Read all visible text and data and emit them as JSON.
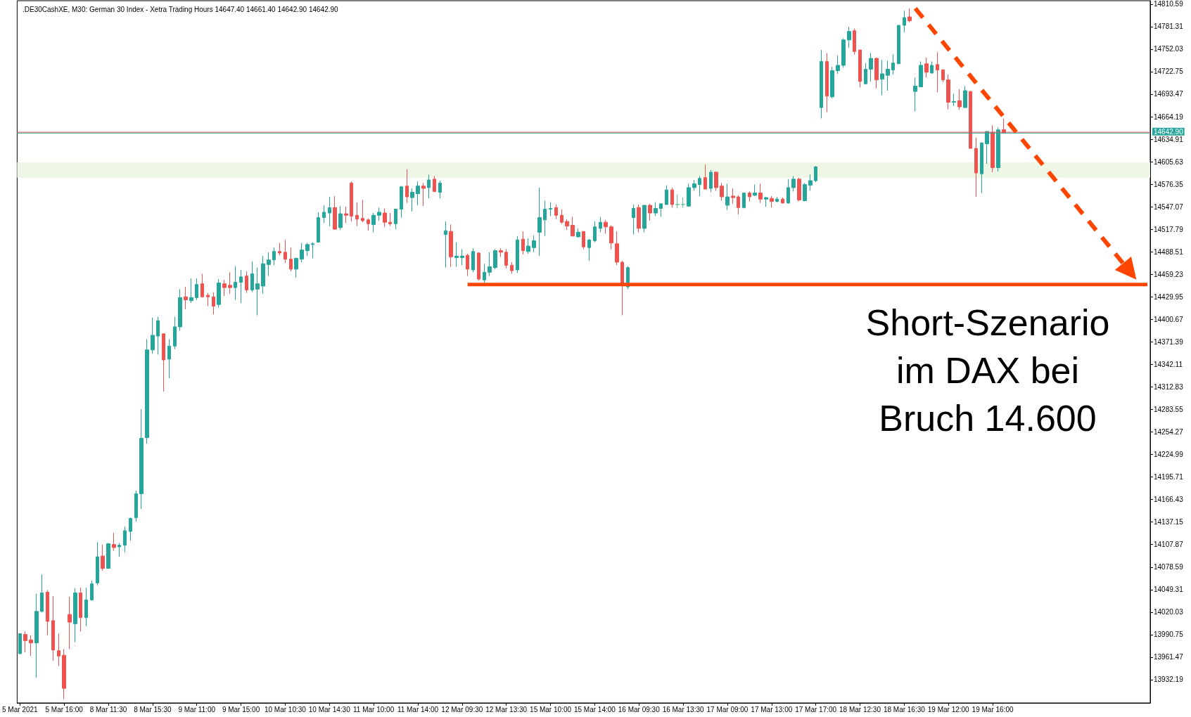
{
  "chart_data": {
    "type": "candlestick",
    "title": ".DE30CashXE, M30: German 30 Index - Xetra Trading Hours 14647.40 14661.40 14642.90 14642.90",
    "categories": [
      "5 Mar 2021",
      null,
      null,
      null,
      null,
      null,
      null,
      null,
      "5 Mar 16:00",
      null,
      null,
      null,
      null,
      null,
      null,
      null,
      "8 Mar 11:30",
      null,
      null,
      null,
      null,
      null,
      null,
      null,
      "8 Mar 15:30",
      null,
      null,
      null,
      null,
      null,
      null,
      null,
      "9 Mar 11:00",
      null,
      null,
      null,
      null,
      null,
      null,
      null,
      "9 Mar 15:00",
      null,
      null,
      null,
      null,
      null,
      null,
      null,
      "10 Mar 10:30",
      null,
      null,
      null,
      null,
      null,
      null,
      null,
      "10 Mar 14:30",
      null,
      null,
      null,
      null,
      null,
      null,
      null,
      "11 Mar 10:00",
      null,
      null,
      null,
      null,
      null,
      null,
      null,
      "11 Mar 14:00",
      null,
      null,
      null,
      null,
      null,
      null,
      null,
      "12 Mar 09:30",
      null,
      null,
      null,
      null,
      null,
      null,
      null,
      "12 Mar 13:30",
      null,
      null,
      null,
      null,
      null,
      null,
      null,
      "15 Mar 10:00",
      null,
      null,
      null,
      null,
      null,
      null,
      null,
      "15 Mar 14:00",
      null,
      null,
      null,
      null,
      null,
      null,
      null,
      "16 Mar 09:30",
      null,
      null,
      null,
      null,
      null,
      null,
      null,
      "16 Mar 13:30",
      null,
      null,
      null,
      null,
      null,
      null,
      null,
      "17 Mar 09:00",
      null,
      null,
      null,
      null,
      null,
      null,
      null,
      "17 Mar 13:00",
      null,
      null,
      null,
      null,
      null,
      null,
      null,
      "17 Mar 17:00",
      null,
      null,
      null,
      null,
      null,
      null,
      null,
      "18 Mar 12:30",
      null,
      null,
      null,
      null,
      null,
      null,
      null,
      "18 Mar 16:30",
      null,
      null,
      null,
      null,
      null,
      null,
      null,
      "19 Mar 12:00",
      null,
      null,
      null,
      null,
      null,
      null,
      null,
      "19 Mar 16:00",
      null,
      null,
      null,
      null,
      null,
      null,
      null,
      null,
      null,
      null,
      null,
      null,
      null,
      null,
      null,
      null,
      null,
      null,
      null,
      null,
      null,
      null,
      null,
      null,
      null,
      null,
      null,
      null
    ],
    "ohlc": [
      [
        13966,
        13992,
        13966,
        13992
      ],
      [
        13991,
        13995,
        13968,
        13983
      ],
      [
        13984,
        13990,
        13963,
        13980
      ],
      [
        13980,
        14044,
        13935,
        14021
      ],
      [
        14021,
        14069,
        14020,
        14045
      ],
      [
        14046,
        14049,
        13990,
        14008
      ],
      [
        14009,
        14041,
        13957,
        13971
      ],
      [
        13970,
        13992,
        13950,
        13963
      ],
      [
        13964,
        13972,
        13907,
        13921
      ],
      [
        14017,
        14040,
        13972,
        14007
      ],
      [
        14005,
        14051,
        13981,
        14045
      ],
      [
        14045,
        14052,
        13995,
        14013
      ],
      [
        14013,
        14052,
        14002,
        14036
      ],
      [
        14036,
        14061,
        14035,
        14057
      ],
      [
        14058,
        14111,
        14055,
        14092
      ],
      [
        14093,
        14108,
        14074,
        14077
      ],
      [
        14077,
        14110,
        14077,
        14109
      ],
      [
        14108,
        14123,
        14100,
        14104
      ],
      [
        14105,
        14110,
        14092,
        14107
      ],
      [
        14107,
        14131,
        14098,
        14126
      ],
      [
        14125,
        14143,
        14113,
        14142
      ],
      [
        14143,
        14178,
        14138,
        14174
      ],
      [
        14174,
        14284,
        14154,
        14246
      ],
      [
        14247,
        14375,
        14239,
        14361
      ],
      [
        14361,
        14403,
        14356,
        14380
      ],
      [
        14379,
        14404,
        14355,
        14399
      ],
      [
        14382,
        14382,
        14307,
        14348
      ],
      [
        14349,
        14375,
        14324,
        14366
      ],
      [
        14366,
        14404,
        14362,
        14391
      ],
      [
        14391,
        14440,
        14386,
        14429
      ],
      [
        14430,
        14443,
        14414,
        14426
      ],
      [
        14425,
        14454,
        14422,
        14429
      ],
      [
        14429,
        14454,
        14426,
        14446
      ],
      [
        14447,
        14460,
        14429,
        14430
      ],
      [
        14432,
        14435,
        14418,
        14430
      ],
      [
        14430,
        14436,
        14407,
        14418
      ],
      [
        14420,
        14453,
        14416,
        14448
      ],
      [
        14447,
        14452,
        14431,
        14442
      ],
      [
        14445,
        14462,
        14434,
        14442
      ],
      [
        14442,
        14470,
        14426,
        14449
      ],
      [
        14449,
        14465,
        14422,
        14456
      ],
      [
        14457,
        14463,
        14435,
        14439
      ],
      [
        14439,
        14476,
        14436,
        14460
      ],
      [
        14440,
        14468,
        14406,
        14447
      ],
      [
        14444,
        14483,
        14434,
        14473
      ],
      [
        14472,
        14488,
        14457,
        14478
      ],
      [
        14478,
        14494,
        14471,
        14489
      ],
      [
        14489,
        14500,
        14484,
        14487
      ],
      [
        14488,
        14504,
        14474,
        14479
      ],
      [
        14479,
        14494,
        14463,
        14466
      ],
      [
        14466,
        14481,
        14455,
        14480
      ],
      [
        14479,
        14500,
        14475,
        14491
      ],
      [
        14490,
        14500,
        14483,
        14498
      ],
      [
        14498,
        14501,
        14480,
        14499
      ],
      [
        14501,
        14540,
        14501,
        14533
      ],
      [
        14533,
        14549,
        14526,
        14540
      ],
      [
        14539,
        14560,
        14522,
        14546
      ],
      [
        14546,
        14561,
        14517,
        14518
      ],
      [
        14520,
        14548,
        14517,
        14538
      ],
      [
        14538,
        14547,
        14526,
        14536
      ],
      [
        14578,
        14580,
        14528,
        14535
      ],
      [
        14536,
        14553,
        14522,
        14531
      ],
      [
        14532,
        14556,
        14527,
        14529
      ],
      [
        14530,
        14532,
        14516,
        14525
      ],
      [
        14524,
        14539,
        14514,
        14536
      ],
      [
        14536,
        14546,
        14529,
        14540
      ],
      [
        14539,
        14545,
        14521,
        14527
      ],
      [
        14527,
        14539,
        14522,
        14525
      ],
      [
        14525,
        14544,
        14518,
        14544
      ],
      [
        14544,
        14574,
        14533,
        14573
      ],
      [
        14574,
        14596,
        14552,
        14560
      ],
      [
        14559,
        14571,
        14541,
        14566
      ],
      [
        14564,
        14580,
        14549,
        14574
      ],
      [
        14574,
        14578,
        14548,
        14571
      ],
      [
        14572,
        14589,
        14558,
        14582
      ],
      [
        14583,
        14587,
        14566,
        14567
      ],
      [
        14566,
        14581,
        14558,
        14578
      ],
      [
        14511,
        14528,
        14468,
        14516
      ],
      [
        14515,
        14524,
        14469,
        14482
      ],
      [
        14481,
        14501,
        14469,
        14483
      ],
      [
        14481,
        14492,
        14471,
        14483
      ],
      [
        14484,
        14486,
        14457,
        14466
      ],
      [
        14465,
        14493,
        14462,
        14489
      ],
      [
        14487,
        14488,
        14451,
        14453
      ],
      [
        14452,
        14473,
        14448,
        14462
      ],
      [
        14462,
        14488,
        14457,
        14469
      ],
      [
        14468,
        14492,
        14466,
        14490
      ],
      [
        14490,
        14493,
        14482,
        14488
      ],
      [
        14488,
        14492,
        14467,
        14471
      ],
      [
        14471,
        14475,
        14460,
        14464
      ],
      [
        14465,
        14509,
        14461,
        14504
      ],
      [
        14505,
        14515,
        14485,
        14490
      ],
      [
        14489,
        14506,
        14486,
        14496
      ],
      [
        14494,
        14510,
        14488,
        14503
      ],
      [
        14514,
        14572,
        14483,
        14533
      ],
      [
        14530,
        14555,
        14509,
        14544
      ],
      [
        14544,
        14553,
        14535,
        14545
      ],
      [
        14546,
        14550,
        14531,
        14536
      ],
      [
        14536,
        14544,
        14525,
        14527
      ],
      [
        14528,
        14531,
        14517,
        14522
      ],
      [
        14523,
        14534,
        14509,
        14509
      ],
      [
        14508,
        14519,
        14507,
        14514
      ],
      [
        14515,
        14515,
        14492,
        14495
      ],
      [
        14494,
        14505,
        14477,
        14504
      ],
      [
        14503,
        14528,
        14501,
        14521
      ],
      [
        14519,
        14534,
        14514,
        14527
      ],
      [
        14527,
        14530,
        14512,
        14521
      ],
      [
        14521,
        14523,
        14492,
        14500
      ],
      [
        14499,
        14515,
        14471,
        14475
      ],
      [
        14475,
        14477,
        14406,
        14447
      ],
      [
        14443,
        14470,
        14440,
        14468
      ],
      [
        14533,
        14550,
        14511,
        14545
      ],
      [
        14546,
        14550,
        14514,
        14519
      ],
      [
        14519,
        14549,
        14514,
        14549
      ],
      [
        14549,
        14551,
        14529,
        14539
      ],
      [
        14539,
        14553,
        14535,
        14545
      ],
      [
        14545,
        14551,
        14534,
        14551
      ],
      [
        14550,
        14575,
        14550,
        14569
      ],
      [
        14569,
        14572,
        14546,
        14550
      ],
      [
        14550,
        14563,
        14545,
        14550
      ],
      [
        14550,
        14559,
        14546,
        14550
      ],
      [
        14548,
        14577,
        14547,
        14572
      ],
      [
        14572,
        14582,
        14568,
        14577
      ],
      [
        14576,
        14587,
        14561,
        14584
      ],
      [
        14585,
        14602,
        14570,
        14570
      ],
      [
        14571,
        14595,
        14566,
        14592
      ],
      [
        14592,
        14593,
        14568,
        14572
      ],
      [
        14574,
        14578,
        14555,
        14560
      ],
      [
        14549,
        14577,
        14543,
        14560
      ],
      [
        14561,
        14571,
        14551,
        14559
      ],
      [
        14560,
        14562,
        14537,
        14546
      ],
      [
        14546,
        14565,
        14545,
        14565
      ],
      [
        14565,
        14567,
        14554,
        14560
      ],
      [
        14562,
        14576,
        14561,
        14565
      ],
      [
        14565,
        14577,
        14552,
        14557
      ],
      [
        14557,
        14560,
        14547,
        14559
      ],
      [
        14558,
        14561,
        14546,
        14554
      ],
      [
        14554,
        14560,
        14553,
        14557
      ],
      [
        14557,
        14559,
        14551,
        14552
      ],
      [
        14552,
        14583,
        14551,
        14572
      ],
      [
        14572,
        14587,
        14567,
        14583
      ],
      [
        14583,
        14585,
        14554,
        14556
      ],
      [
        14555,
        14578,
        14554,
        14576
      ],
      [
        14575,
        14589,
        14568,
        14581
      ],
      [
        14581,
        14600,
        14579,
        14599
      ],
      [
        14676,
        14751,
        14662,
        14736
      ],
      [
        14736,
        14747,
        14670,
        14691
      ],
      [
        14690,
        14729,
        14688,
        14724
      ],
      [
        14724,
        14744,
        14720,
        14731
      ],
      [
        14731,
        14766,
        14728,
        14764
      ],
      [
        14764,
        14781,
        14754,
        14775
      ],
      [
        14776,
        14779,
        14745,
        14749
      ],
      [
        14751,
        14751,
        14702,
        14710
      ],
      [
        14707,
        14734,
        14706,
        14726
      ],
      [
        14726,
        14747,
        14710,
        14740
      ],
      [
        14740,
        14741,
        14701,
        14712
      ],
      [
        14713,
        14738,
        14692,
        14720
      ],
      [
        14718,
        14737,
        14698,
        14726
      ],
      [
        14725,
        14745,
        14719,
        14734
      ],
      [
        14733,
        14783,
        14733,
        14783
      ],
      [
        14783,
        14802,
        14774,
        14793
      ],
      [
        14794,
        14805,
        14787,
        14789
      ],
      [
        14697,
        14715,
        14671,
        14704
      ],
      [
        14703,
        14736,
        14703,
        14731
      ],
      [
        14733,
        14741,
        14715,
        14722
      ],
      [
        14721,
        14736,
        14720,
        14731
      ],
      [
        14732,
        14748,
        14696,
        14725
      ],
      [
        14725,
        14726,
        14709,
        14712
      ],
      [
        14712,
        14719,
        14674,
        14683
      ],
      [
        14683,
        14694,
        14678,
        14684
      ],
      [
        14685,
        14700,
        14673,
        14677
      ],
      [
        14676,
        14704,
        14676,
        14698
      ],
      [
        14697,
        14697,
        14623,
        14623
      ],
      [
        14623,
        14637,
        14560,
        14591
      ],
      [
        14590,
        14631,
        14565,
        14630
      ],
      [
        14629,
        14645,
        14603,
        14645
      ],
      [
        14644,
        14653,
        14592,
        14598
      ],
      [
        14598,
        14650,
        14593,
        14647
      ],
      [
        14647.4,
        14661.4,
        14642.9,
        14642.9
      ],
      null,
      null,
      null,
      null,
      null,
      null,
      null,
      null,
      null,
      null,
      null,
      null,
      null,
      null,
      null,
      null,
      null,
      null,
      null,
      null,
      null,
      null,
      null,
      null,
      null,
      null
    ],
    "colors": [
      "#26a69a",
      "#ef5350",
      "#ef5350",
      "#26a69a",
      "#26a69a",
      "#ef5350",
      "#ef5350",
      "#ef5350",
      "#ef5350",
      "#ef5350",
      "#26a69a",
      "#ef5350",
      "#26a69a",
      "#26a69a",
      "#26a69a",
      "#ef5350",
      "#26a69a",
      "#ef5350",
      "#26a69a",
      "#26a69a",
      "#26a69a",
      "#26a69a",
      "#26a69a",
      "#26a69a",
      "#26a69a",
      "#26a69a",
      "#ef5350",
      "#26a69a",
      "#26a69a",
      "#26a69a",
      "#ef5350",
      "#26a69a",
      "#26a69a",
      "#ef5350",
      "#ef5350",
      "#ef5350",
      "#26a69a",
      "#ef5350",
      "#ef5350",
      "#26a69a",
      "#26a69a",
      "#ef5350",
      "#26a69a",
      "#26a69a",
      "#26a69a",
      "#26a69a",
      "#26a69a",
      "#ef5350",
      "#ef5350",
      "#ef5350",
      "#26a69a",
      "#26a69a",
      "#26a69a",
      "#26a69a",
      "#26a69a",
      "#26a69a",
      "#26a69a",
      "#ef5350",
      "#26a69a",
      "#ef5350",
      "#ef5350",
      "#ef5350",
      "#ef5350",
      "#ef5350",
      "#26a69a",
      "#26a69a",
      "#ef5350",
      "#ef5350",
      "#26a69a",
      "#26a69a",
      "#ef5350",
      "#26a69a",
      "#26a69a",
      "#ef5350",
      "#26a69a",
      "#ef5350",
      "#26a69a",
      "#26a69a",
      "#ef5350",
      "#26a69a",
      "#26a69a",
      "#ef5350",
      "#26a69a",
      "#ef5350",
      "#26a69a",
      "#26a69a",
      "#26a69a",
      "#ef5350",
      "#ef5350",
      "#ef5350",
      "#26a69a",
      "#ef5350",
      "#26a69a",
      "#26a69a",
      "#26a69a",
      "#26a69a",
      "#26a69a",
      "#ef5350",
      "#ef5350",
      "#ef5350",
      "#ef5350",
      "#26a69a",
      "#ef5350",
      "#26a69a",
      "#26a69a",
      "#26a69a",
      "#ef5350",
      "#ef5350",
      "#ef5350",
      "#ef5350",
      "#26a69a",
      "#26a69a",
      "#ef5350",
      "#26a69a",
      "#ef5350",
      "#26a69a",
      "#26a69a",
      "#26a69a",
      "#ef5350",
      "#5fbf8f",
      "#5fbf8f",
      "#26a69a",
      "#26a69a",
      "#26a69a",
      "#ef5350",
      "#26a69a",
      "#ef5350",
      "#ef5350",
      "#26a69a",
      "#ef5350",
      "#ef5350",
      "#26a69a",
      "#ef5350",
      "#26a69a",
      "#ef5350",
      "#26a69a",
      "#ef5350",
      "#26a69a",
      "#ef5350",
      "#26a69a",
      "#26a69a",
      "#ef5350",
      "#26a69a",
      "#26a69a",
      "#26a69a",
      "#26a69a",
      "#ef5350",
      "#26a69a",
      "#26a69a",
      "#26a69a",
      "#26a69a",
      "#ef5350",
      "#ef5350",
      "#26a69a",
      "#26a69a",
      "#ef5350",
      "#26a69a",
      "#26a69a",
      "#26a69a",
      "#26a69a",
      "#26a69a",
      "#ef5350",
      "#26a69a",
      "#26a69a",
      "#ef5350",
      "#26a69a",
      "#ef5350",
      "#ef5350",
      "#ef5350",
      "#26a69a",
      "#ef5350",
      "#26a69a",
      "#ef5350",
      "#ef5350",
      "#26a69a",
      "#26a69a",
      "#ef5350",
      "#26a69a",
      "#ef5350",
      null,
      null,
      null,
      null,
      null,
      null,
      null,
      null,
      null,
      null,
      null,
      null,
      null,
      null,
      null,
      null,
      null,
      null,
      null,
      null,
      null,
      null,
      null,
      null,
      null,
      null
    ],
    "series": [
      {
        "type": "line",
        "color": "#ff4500",
        "values": [
          null,
          null,
          null,
          null,
          null,
          null,
          null,
          null,
          null,
          null,
          null,
          null,
          null,
          null,
          null,
          null,
          null,
          null,
          null,
          null,
          null,
          null,
          null,
          null,
          null,
          null,
          null,
          null,
          null,
          null,
          null,
          null,
          null,
          null,
          null,
          null,
          null,
          null,
          null,
          null,
          null,
          null,
          null,
          null,
          null,
          null,
          null,
          null,
          null,
          null,
          null,
          null,
          null,
          null,
          null,
          null,
          null,
          null,
          null,
          null,
          null,
          null,
          null,
          null,
          null,
          null,
          null,
          null,
          null,
          null,
          null,
          null,
          null,
          null,
          null,
          null,
          null,
          null,
          null,
          null,
          null,
          14446,
          14446,
          14446,
          14446,
          14446,
          14446,
          14446,
          14446,
          14446,
          14446,
          14446,
          14446,
          14446,
          14446,
          14446,
          14446,
          14446,
          14446,
          14446,
          14446,
          14446,
          14446,
          14446,
          14446,
          14446,
          14446,
          14446,
          14446,
          14446,
          14446,
          14446,
          14446,
          14446,
          14446,
          14446,
          14446,
          14446,
          14446,
          14446,
          14446,
          14446,
          14446,
          14446,
          14446,
          14446,
          14446,
          14446,
          14446,
          14446,
          14446,
          14446,
          14446,
          14446,
          14446,
          14446,
          14446,
          14446,
          14446,
          14446,
          14446,
          14446,
          14446,
          14446,
          14446,
          14446,
          14446,
          14446,
          14446,
          14446,
          14446,
          14446,
          14446,
          14446,
          14446,
          14446,
          14446,
          14446,
          14446,
          14446,
          14446,
          14446,
          14446,
          14446,
          14446,
          14446,
          14446,
          14446,
          14446,
          14446,
          14446,
          14446,
          14446,
          14446,
          14446,
          14446,
          14446,
          14446,
          14446,
          14446,
          14446,
          14446,
          14446,
          14446,
          14446,
          14446,
          14446,
          14446,
          14446,
          14446,
          14446,
          14446,
          14446,
          14446,
          14446,
          14446,
          14446,
          14446,
          14446,
          14446,
          14446,
          14446,
          14446,
          14446,
          14446
        ]
      }
    ],
    "ylim": [
      13902,
      14815
    ],
    "yticks": [
      14810.59,
      14781.31,
      14752.03,
      14722.75,
      14693.47,
      14664.19,
      14634.91,
      14605.63,
      14576.35,
      14547.07,
      14517.79,
      14488.51,
      14459.23,
      14429.95,
      14400.67,
      14371.39,
      14342.11,
      14312.83,
      14283.55,
      14254.27,
      14224.99,
      14195.71,
      14166.43,
      14137.15,
      14107.87,
      14078.59,
      14049.31,
      14020.03,
      13990.75,
      13961.47,
      13932.19
    ],
    "bands": [
      {
        "axis": "y",
        "from": 14585,
        "to": 14605,
        "color": "#eef7e6"
      }
    ],
    "ref_lines": [
      {
        "axis": "y",
        "value": 14644,
        "color": "#ef5350"
      },
      {
        "axis": "y",
        "value": 14642.9,
        "label": "14642.90",
        "color": "#26a69a"
      }
    ],
    "annotations": [
      "Short-Szenario im DAX bei Bruch 14.600"
    ]
  }
}
